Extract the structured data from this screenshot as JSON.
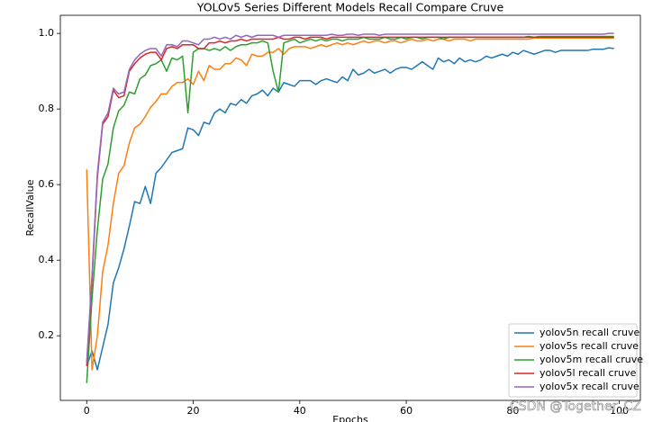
{
  "chart_data": {
    "type": "line",
    "title": "YOLOv5 Series Different Models Recall Compare Cruve",
    "x_label": "Epochs",
    "y_label": "RecallValue",
    "watermark": "CSDN @Together_CZ",
    "x": [
      0,
      1,
      2,
      3,
      4,
      5,
      6,
      7,
      8,
      9,
      10,
      11,
      12,
      13,
      14,
      15,
      16,
      17,
      18,
      19,
      20,
      21,
      22,
      23,
      24,
      25,
      26,
      27,
      28,
      29,
      30,
      31,
      32,
      33,
      34,
      35,
      36,
      37,
      38,
      39,
      40,
      41,
      42,
      43,
      44,
      45,
      46,
      47,
      48,
      49,
      50,
      51,
      52,
      53,
      54,
      55,
      56,
      57,
      58,
      59,
      60,
      61,
      62,
      63,
      64,
      65,
      66,
      67,
      68,
      69,
      70,
      71,
      72,
      73,
      74,
      75,
      76,
      77,
      78,
      79,
      80,
      81,
      82,
      83,
      84,
      85,
      86,
      87,
      88,
      89,
      90,
      91,
      92,
      93,
      94,
      95,
      96,
      97,
      98,
      99
    ],
    "series": [
      {
        "name": "yolov5n recall cruve",
        "color": "#1f77b4",
        "values": [
          0.12,
          0.16,
          0.11,
          0.17,
          0.23,
          0.34,
          0.38,
          0.43,
          0.49,
          0.555,
          0.55,
          0.595,
          0.55,
          0.63,
          0.645,
          0.665,
          0.685,
          0.69,
          0.695,
          0.75,
          0.745,
          0.73,
          0.765,
          0.76,
          0.79,
          0.8,
          0.79,
          0.815,
          0.81,
          0.825,
          0.815,
          0.835,
          0.84,
          0.85,
          0.835,
          0.855,
          0.845,
          0.87,
          0.865,
          0.86,
          0.875,
          0.875,
          0.875,
          0.865,
          0.875,
          0.88,
          0.875,
          0.87,
          0.885,
          0.875,
          0.905,
          0.89,
          0.895,
          0.905,
          0.895,
          0.9,
          0.905,
          0.895,
          0.905,
          0.91,
          0.91,
          0.905,
          0.915,
          0.925,
          0.915,
          0.905,
          0.935,
          0.925,
          0.93,
          0.92,
          0.935,
          0.925,
          0.93,
          0.925,
          0.93,
          0.94,
          0.935,
          0.94,
          0.945,
          0.94,
          0.95,
          0.945,
          0.955,
          0.95,
          0.945,
          0.95,
          0.955,
          0.955,
          0.95,
          0.955,
          0.955,
          0.955,
          0.955,
          0.955,
          0.955,
          0.958,
          0.958,
          0.958,
          0.962,
          0.96
        ]
      },
      {
        "name": "yolov5s recall cruve",
        "color": "#ff7f0e",
        "values": [
          0.64,
          0.11,
          0.2,
          0.37,
          0.44,
          0.55,
          0.63,
          0.65,
          0.71,
          0.75,
          0.76,
          0.78,
          0.805,
          0.82,
          0.84,
          0.84,
          0.86,
          0.87,
          0.87,
          0.88,
          0.865,
          0.9,
          0.875,
          0.915,
          0.905,
          0.905,
          0.92,
          0.92,
          0.935,
          0.93,
          0.915,
          0.945,
          0.94,
          0.94,
          0.95,
          0.95,
          0.96,
          0.945,
          0.96,
          0.965,
          0.965,
          0.965,
          0.96,
          0.965,
          0.97,
          0.965,
          0.97,
          0.975,
          0.97,
          0.975,
          0.97,
          0.975,
          0.98,
          0.975,
          0.98,
          0.98,
          0.975,
          0.98,
          0.98,
          0.975,
          0.98,
          0.985,
          0.98,
          0.98,
          0.985,
          0.98,
          0.985,
          0.985,
          0.98,
          0.985,
          0.985,
          0.985,
          0.98,
          0.985,
          0.985,
          0.985,
          0.985,
          0.985,
          0.985,
          0.985,
          0.985,
          0.985,
          0.985,
          0.985,
          0.988,
          0.988,
          0.988,
          0.988,
          0.988,
          0.988,
          0.988,
          0.988,
          0.988,
          0.988,
          0.988,
          0.988,
          0.988,
          0.988,
          0.988,
          0.988
        ]
      },
      {
        "name": "yolov5m recall cruve",
        "color": "#2ca02c",
        "values": [
          0.075,
          0.3,
          0.48,
          0.615,
          0.655,
          0.75,
          0.795,
          0.81,
          0.845,
          0.84,
          0.88,
          0.89,
          0.915,
          0.92,
          0.93,
          0.9,
          0.935,
          0.93,
          0.94,
          0.79,
          0.95,
          0.96,
          0.96,
          0.955,
          0.96,
          0.955,
          0.965,
          0.955,
          0.965,
          0.97,
          0.97,
          0.975,
          0.975,
          0.98,
          0.975,
          0.9,
          0.845,
          0.975,
          0.98,
          0.985,
          0.975,
          0.98,
          0.985,
          0.98,
          0.985,
          0.98,
          0.985,
          0.985,
          0.98,
          0.985,
          0.985,
          0.985,
          0.99,
          0.985,
          0.985,
          0.985,
          0.99,
          0.985,
          0.985,
          0.99,
          0.985,
          0.99,
          0.99,
          0.985,
          0.99,
          0.99,
          0.99,
          0.985,
          0.99,
          0.99,
          0.99,
          0.99,
          0.99,
          0.99,
          0.99,
          0.99,
          0.99,
          0.99,
          0.99,
          0.99,
          0.99,
          0.99,
          0.99,
          0.992,
          0.99,
          0.992,
          0.992,
          0.992,
          0.992,
          0.992,
          0.992,
          0.992,
          0.992,
          0.992,
          0.992,
          0.992,
          0.992,
          0.992,
          0.992,
          0.992
        ]
      },
      {
        "name": "yolov5l recall cruve",
        "color": "#d62728",
        "values": [
          0.12,
          0.35,
          0.62,
          0.76,
          0.78,
          0.85,
          0.83,
          0.835,
          0.9,
          0.92,
          0.935,
          0.945,
          0.95,
          0.95,
          0.93,
          0.96,
          0.965,
          0.96,
          0.97,
          0.97,
          0.97,
          0.96,
          0.96,
          0.975,
          0.975,
          0.98,
          0.975,
          0.98,
          0.98,
          0.985,
          0.98,
          0.985,
          0.985,
          0.985,
          0.985,
          0.985,
          0.99,
          0.985,
          0.985,
          0.99,
          0.99,
          0.985,
          0.99,
          0.99,
          0.99,
          0.985,
          0.99,
          0.99,
          0.99,
          0.99,
          0.99,
          0.99,
          0.99,
          0.99,
          0.99,
          0.99,
          0.99,
          0.99,
          0.99,
          0.99,
          0.99,
          0.99,
          0.99,
          0.99,
          0.99,
          0.99,
          0.99,
          0.99,
          0.99,
          0.99,
          0.99,
          0.99,
          0.99,
          0.99,
          0.99,
          0.99,
          0.99,
          0.99,
          0.99,
          0.99,
          0.99,
          0.99,
          0.99,
          0.99,
          0.99,
          0.99,
          0.99,
          0.99,
          0.99,
          0.99,
          0.99,
          0.99,
          0.99,
          0.99,
          0.99,
          0.99,
          0.99,
          0.99,
          0.99,
          0.99
        ]
      },
      {
        "name": "yolov5x recall cruve",
        "color": "#9467bd",
        "values": [
          0.13,
          0.36,
          0.63,
          0.765,
          0.79,
          0.855,
          0.84,
          0.845,
          0.905,
          0.93,
          0.945,
          0.955,
          0.96,
          0.96,
          0.94,
          0.97,
          0.97,
          0.965,
          0.98,
          0.98,
          0.975,
          0.97,
          0.985,
          0.985,
          0.99,
          0.985,
          0.99,
          0.985,
          0.995,
          0.99,
          0.995,
          0.99,
          0.995,
          0.995,
          0.995,
          0.995,
          0.99,
          0.995,
          0.995,
          0.995,
          0.995,
          0.995,
          0.995,
          0.995,
          0.995,
          0.995,
          0.998,
          0.995,
          0.995,
          0.998,
          0.998,
          0.995,
          0.998,
          0.998,
          0.998,
          0.995,
          0.998,
          0.998,
          0.998,
          0.998,
          0.998,
          0.998,
          0.998,
          0.998,
          0.998,
          0.998,
          0.998,
          0.998,
          0.998,
          0.998,
          0.998,
          0.998,
          0.998,
          0.998,
          0.998,
          0.998,
          0.998,
          0.998,
          0.998,
          0.998,
          0.998,
          0.998,
          0.998,
          0.998,
          0.998,
          0.998,
          0.998,
          0.998,
          0.998,
          0.998,
          0.998,
          0.998,
          0.998,
          0.998,
          0.998,
          0.998,
          0.998,
          0.998,
          1.0,
          1.0
        ]
      }
    ],
    "xlim": [
      -4.95,
      103.95
    ],
    "xticks": [
      0,
      20,
      40,
      60,
      80,
      100
    ],
    "ylim": [
      0.029,
      1.048
    ],
    "yticks": [
      0.2,
      0.4,
      0.6,
      0.8,
      {
        "value": 1,
        "label": "1.0"
      }
    ],
    "grid": false,
    "legend": "lower right"
  }
}
